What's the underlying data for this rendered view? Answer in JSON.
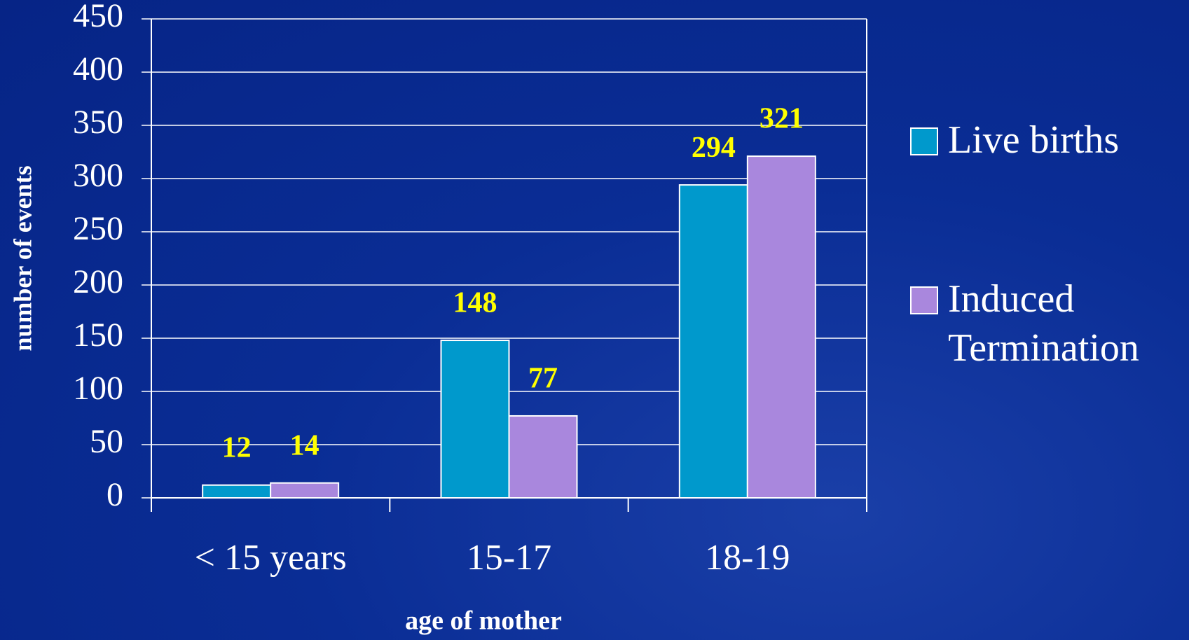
{
  "chart_data": {
    "type": "bar",
    "categories": [
      "< 15 years",
      "15-17",
      "18-19"
    ],
    "series": [
      {
        "name": "Live births",
        "color": "#0099cc",
        "values": [
          12,
          148,
          294
        ]
      },
      {
        "name": "Induced Termination",
        "color": "#a987dd",
        "values": [
          14,
          77,
          321
        ]
      }
    ],
    "ylim": [
      0,
      450
    ],
    "yticks": [
      0,
      50,
      100,
      150,
      200,
      250,
      300,
      350,
      400,
      450
    ],
    "grid": true,
    "x_label": "age of mother",
    "y_label": "number of events",
    "legend": "right"
  }
}
